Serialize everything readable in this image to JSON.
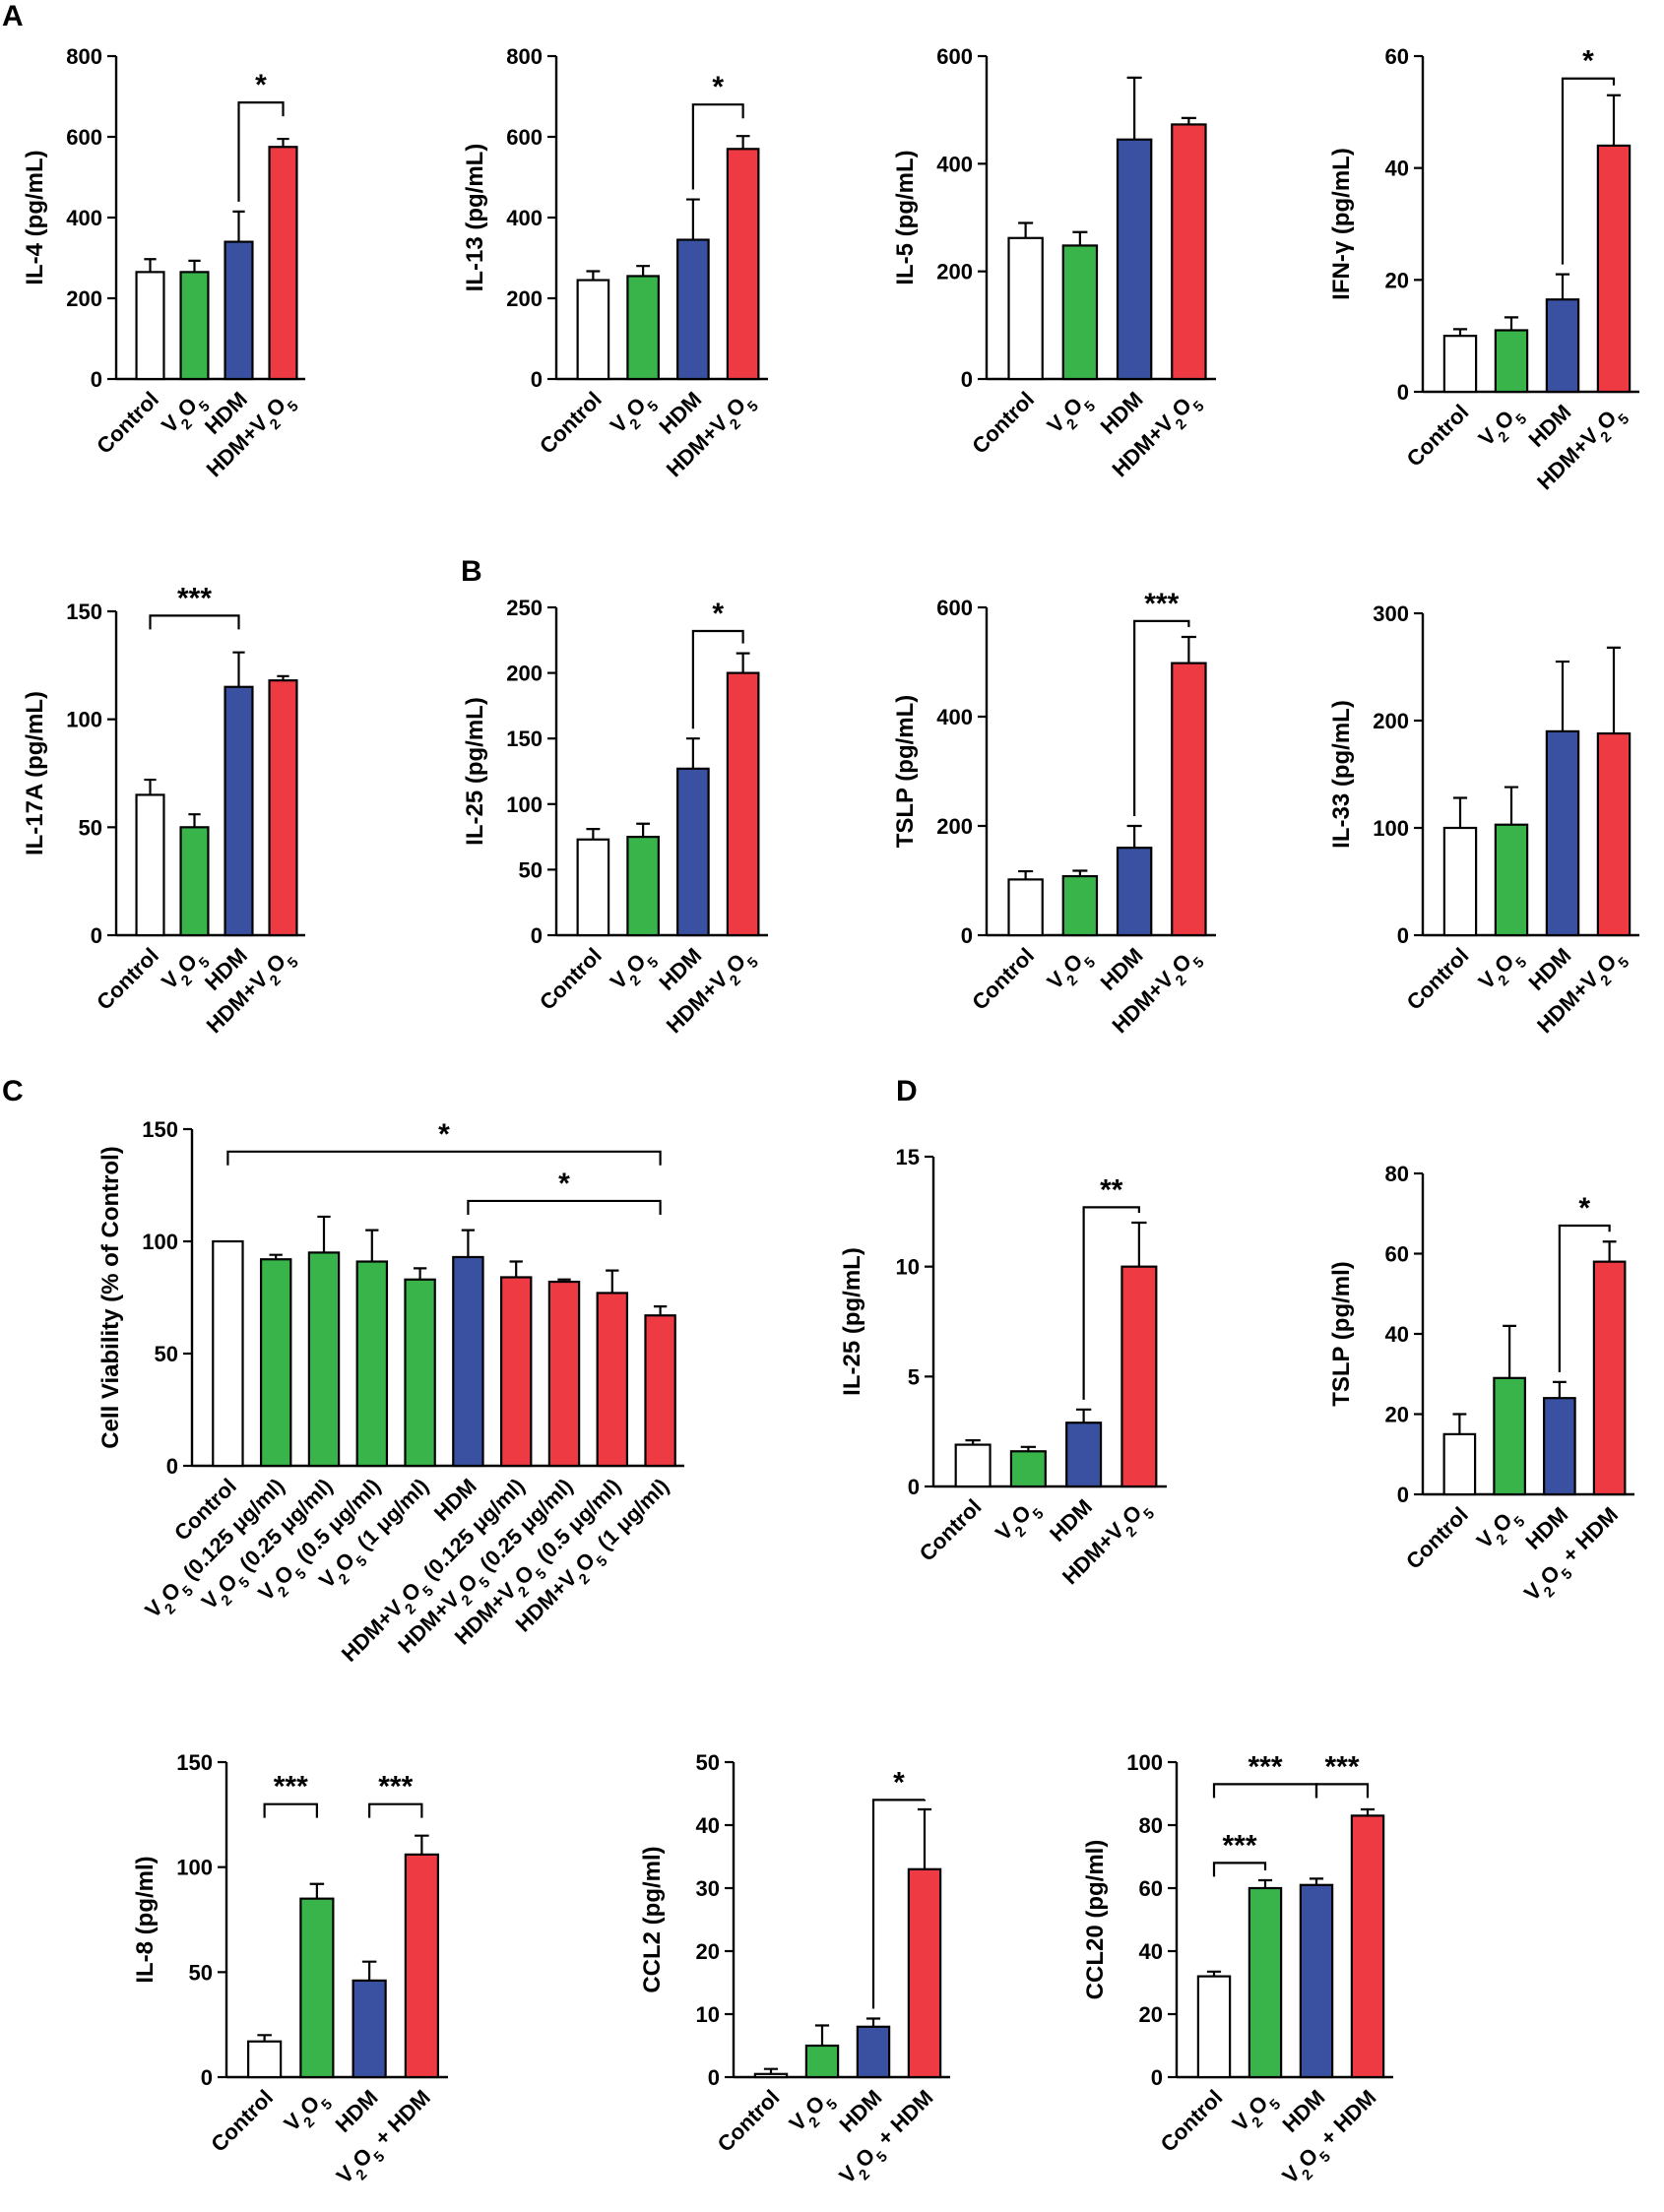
{
  "colors": {
    "white": "#ffffff",
    "green": "#38b44a",
    "blue": "#3a50a0",
    "red": "#ee3a43"
  },
  "panel_letters": [
    "A",
    "B",
    "C",
    "D"
  ],
  "chart_data": [
    {
      "id": "il4",
      "type": "bar",
      "ylabel": "IL-4 (pg/mL)",
      "ylim": [
        0,
        800
      ],
      "yticks": [
        0,
        200,
        400,
        600,
        800
      ],
      "categories": [
        "Control",
        "V2O5",
        "HDM",
        "HDM+V2O5"
      ],
      "values": [
        265,
        265,
        340,
        575
      ],
      "errors": [
        32,
        28,
        75,
        20
      ],
      "colors": [
        "white",
        "green",
        "blue",
        "red"
      ],
      "significance": [
        {
          "from": 2,
          "to": 3,
          "label": "*",
          "y": 685
        }
      ]
    },
    {
      "id": "il13",
      "type": "bar",
      "ylabel": "IL-13 (pg/mL)",
      "ylim": [
        0,
        800
      ],
      "yticks": [
        0,
        200,
        400,
        600,
        800
      ],
      "categories": [
        "Control",
        "V2O5",
        "HDM",
        "HDM+V2O5"
      ],
      "values": [
        245,
        255,
        345,
        570
      ],
      "errors": [
        22,
        25,
        100,
        32
      ],
      "colors": [
        "white",
        "green",
        "blue",
        "red"
      ],
      "significance": [
        {
          "from": 2,
          "to": 3,
          "label": "*",
          "y": 680
        }
      ]
    },
    {
      "id": "il5",
      "type": "bar",
      "ylabel": "IL-5 (pg/mL)",
      "ylim": [
        0,
        600
      ],
      "yticks": [
        0,
        200,
        400,
        600
      ],
      "categories": [
        "Control",
        "V2O5",
        "HDM",
        "HDM+V2O5"
      ],
      "values": [
        262,
        248,
        445,
        473
      ],
      "errors": [
        28,
        25,
        115,
        12
      ],
      "colors": [
        "white",
        "green",
        "blue",
        "red"
      ],
      "significance": []
    },
    {
      "id": "ifng",
      "type": "bar",
      "ylabel": "IFN-γ (pg/mL)",
      "ylim": [
        0,
        60
      ],
      "yticks": [
        0,
        20,
        40,
        60
      ],
      "categories": [
        "Control",
        "V2O5",
        "HDM",
        "HDM+V2O5"
      ],
      "values": [
        10,
        11,
        16.5,
        44
      ],
      "errors": [
        1.2,
        2.3,
        4.5,
        9
      ],
      "colors": [
        "white",
        "green",
        "blue",
        "red"
      ],
      "significance": [
        {
          "from": 2,
          "to": 3,
          "label": "*",
          "y": 56
        }
      ]
    },
    {
      "id": "il17a",
      "type": "bar",
      "ylabel": "IL-17A (pg/mL)",
      "ylim": [
        0,
        150
      ],
      "yticks": [
        0,
        50,
        100,
        150
      ],
      "categories": [
        "Control",
        "V2O5",
        "HDM",
        "HDM+V2O5"
      ],
      "values": [
        65,
        50,
        115,
        118
      ],
      "errors": [
        7,
        6,
        16,
        2
      ],
      "colors": [
        "white",
        "green",
        "blue",
        "red"
      ],
      "significance": [
        {
          "from": 0,
          "to": 2,
          "label": "***",
          "y": 148
        }
      ]
    },
    {
      "id": "il25b",
      "type": "bar",
      "ylabel": "IL-25 (pg/mL)",
      "ylim": [
        0,
        250
      ],
      "yticks": [
        0,
        50,
        100,
        150,
        200,
        250
      ],
      "categories": [
        "Control",
        "V2O5",
        "HDM",
        "HDM+V2O5"
      ],
      "values": [
        73,
        75,
        127,
        200
      ],
      "errors": [
        8,
        10,
        23,
        15
      ],
      "colors": [
        "white",
        "green",
        "blue",
        "red"
      ],
      "significance": [
        {
          "from": 2,
          "to": 3,
          "label": "*",
          "y": 232
        }
      ]
    },
    {
      "id": "tslpb",
      "type": "bar",
      "ylabel": "TSLP (pg/mL)",
      "ylim": [
        0,
        600
      ],
      "yticks": [
        0,
        200,
        400,
        600
      ],
      "categories": [
        "Control",
        "V2O5",
        "HDM",
        "HDM+V2O5"
      ],
      "values": [
        102,
        108,
        160,
        498
      ],
      "errors": [
        15,
        10,
        40,
        48
      ],
      "colors": [
        "white",
        "green",
        "blue",
        "red"
      ],
      "significance": [
        {
          "from": 2,
          "to": 3,
          "label": "***",
          "y": 575
        }
      ]
    },
    {
      "id": "il33",
      "type": "bar",
      "ylabel": "IL-33 (pg/mL)",
      "ylim": [
        0,
        300
      ],
      "yticks": [
        0,
        100,
        200,
        300
      ],
      "categories": [
        "Control",
        "V2O5",
        "HDM",
        "HDM+V2O5"
      ],
      "values": [
        100,
        103,
        190,
        188
      ],
      "errors": [
        28,
        35,
        65,
        80
      ],
      "colors": [
        "white",
        "green",
        "blue",
        "red"
      ],
      "significance": []
    },
    {
      "id": "viability",
      "type": "bar",
      "ylabel": "Cell Viability (% of Control)",
      "ylim": [
        0,
        150
      ],
      "yticks": [
        0,
        50,
        100,
        150
      ],
      "categories": [
        "Control",
        "V2O5 (0.125 μg/ml)",
        "V2O5 (0.25 μg/ml)",
        "V2O5 (0.5 μg/ml)",
        "V2O5 (1 μg/ml)",
        "HDM",
        "HDM+V2O5 (0.125 μg/ml)",
        "HDM+V2O5 (0.25 μg/ml)",
        "HDM+V2O5 (0.5 μg/ml)",
        "HDM+V2O5 (1 μg/ml)"
      ],
      "values": [
        100,
        92,
        95,
        91,
        83,
        93,
        84,
        82,
        77,
        67
      ],
      "errors": [
        0,
        2,
        16,
        14,
        5,
        12,
        7,
        1,
        10,
        4
      ],
      "colors": [
        "white",
        "green",
        "green",
        "green",
        "green",
        "blue",
        "red",
        "red",
        "red",
        "red"
      ],
      "significance": [
        {
          "from": 0,
          "to": 9,
          "label": "*",
          "y": 140
        },
        {
          "from": 5,
          "to": 9,
          "label": "*",
          "y": 118
        }
      ]
    },
    {
      "id": "il25d",
      "type": "bar",
      "ylabel": "IL-25 (pg/mL)",
      "ylim": [
        0,
        15
      ],
      "yticks": [
        0,
        5,
        10,
        15
      ],
      "categories": [
        "Control",
        "V2O5",
        "HDM",
        "HDM+V2O5"
      ],
      "values": [
        1.9,
        1.6,
        2.9,
        10.0
      ],
      "errors": [
        0.2,
        0.2,
        0.6,
        2.0
      ],
      "colors": [
        "white",
        "green",
        "blue",
        "red"
      ],
      "significance": [
        {
          "from": 2,
          "to": 3,
          "label": "**",
          "y": 12.7
        }
      ]
    },
    {
      "id": "tslpd",
      "type": "bar",
      "ylabel": "TSLP (pg/ml)",
      "ylim": [
        0,
        80
      ],
      "yticks": [
        0,
        20,
        40,
        60,
        80
      ],
      "categories": [
        "Control",
        "V2O5",
        "HDM",
        "V2O5 + HDM"
      ],
      "values": [
        15,
        29,
        24,
        58
      ],
      "errors": [
        5,
        13,
        4,
        5
      ],
      "colors": [
        "white",
        "green",
        "blue",
        "red"
      ],
      "significance": [
        {
          "from": 2,
          "to": 3,
          "label": "*",
          "y": 67
        }
      ]
    },
    {
      "id": "il8",
      "type": "bar",
      "ylabel": "IL-8 (pg/ml)",
      "ylim": [
        0,
        150
      ],
      "yticks": [
        0,
        50,
        100,
        150
      ],
      "categories": [
        "Control",
        "V2O5",
        "HDM",
        "V2O5 + HDM"
      ],
      "values": [
        17,
        85,
        46,
        106
      ],
      "errors": [
        3,
        7,
        9,
        9
      ],
      "colors": [
        "white",
        "green",
        "blue",
        "red"
      ],
      "significance": [
        {
          "from": 0,
          "to": 1,
          "label": "***",
          "y": 130
        },
        {
          "from": 2,
          "to": 3,
          "label": "***",
          "y": 130
        }
      ]
    },
    {
      "id": "ccl2",
      "type": "bar",
      "ylabel": "CCL2 (pg/ml)",
      "ylim": [
        0,
        50
      ],
      "yticks": [
        0,
        10,
        20,
        30,
        40,
        50
      ],
      "categories": [
        "Control",
        "V2O5",
        "HDM",
        "V2O5 + HDM"
      ],
      "values": [
        0.5,
        5,
        8,
        33
      ],
      "errors": [
        0.8,
        3.2,
        1.3,
        9.5
      ],
      "colors": [
        "white",
        "green",
        "blue",
        "red"
      ],
      "significance": [
        {
          "from": 2,
          "to": 3,
          "label": "*",
          "y": 44
        }
      ]
    },
    {
      "id": "ccl20",
      "type": "bar",
      "ylabel": "CCL20 (pg/ml)",
      "ylim": [
        0,
        100
      ],
      "yticks": [
        0,
        20,
        40,
        60,
        80,
        100
      ],
      "categories": [
        "Control",
        "V2O5",
        "HDM",
        "V2O5 + HDM"
      ],
      "values": [
        32,
        60,
        61,
        83
      ],
      "errors": [
        1.5,
        2.5,
        2,
        2
      ],
      "colors": [
        "white",
        "green",
        "blue",
        "red"
      ],
      "significance": [
        {
          "from": 0,
          "to": 1,
          "label": "***",
          "y": 68
        },
        {
          "from": 0,
          "to": 2,
          "label": "***",
          "y": 93
        },
        {
          "from": 2,
          "to": 3,
          "label": "***",
          "y": 93
        }
      ]
    }
  ]
}
